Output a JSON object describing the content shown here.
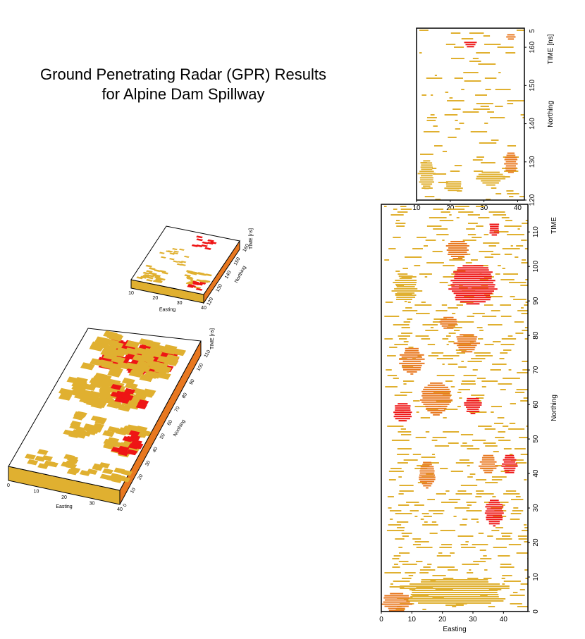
{
  "title": {
    "line1": "Ground Penetrating Radar (GPR) Results",
    "line2": "for Alpine Dam Spillway"
  },
  "colors": {
    "low": "#e0b030",
    "mid": "#e87820",
    "high": "#ee1515",
    "frame": "#000000"
  },
  "chart_data": [
    {
      "type": "heatmap",
      "id": "plan-top",
      "xlabel": "",
      "ylabel": "Northing",
      "right_label": "TIME [ns]",
      "right_label_value": "5",
      "xlim": [
        10,
        42
      ],
      "ylim": [
        120,
        165
      ],
      "x_ticks": [
        "10",
        "20",
        "30",
        "40"
      ],
      "y_ticks": [
        "120",
        "130",
        "140",
        "150",
        "160"
      ],
      "blobs": [
        {
          "x": 26,
          "y": 161,
          "w": 4,
          "h": 2,
          "level": "high"
        },
        {
          "x": 38,
          "y": 163,
          "w": 3,
          "h": 2,
          "level": "mid"
        },
        {
          "x": 32,
          "y": 126,
          "w": 8,
          "h": 4,
          "level": "low"
        },
        {
          "x": 38,
          "y": 130,
          "w": 4,
          "h": 6,
          "level": "mid"
        },
        {
          "x": 13,
          "y": 127,
          "w": 5,
          "h": 8,
          "level": "low"
        },
        {
          "x": 21,
          "y": 124,
          "w": 6,
          "h": 3,
          "level": "low"
        }
      ]
    },
    {
      "type": "heatmap",
      "id": "plan-bottom",
      "xlabel": "Easting",
      "ylabel": "Northing",
      "right_label": "TIME",
      "xlim": [
        0,
        48
      ],
      "ylim": [
        0,
        118
      ],
      "x_ticks": [
        "0",
        "10",
        "20",
        "30",
        "40"
      ],
      "y_ticks": [
        "0",
        "10",
        "20",
        "30",
        "40",
        "50",
        "60",
        "70",
        "80",
        "90",
        "100",
        "110"
      ],
      "blobs": [
        {
          "x": 30,
          "y": 95,
          "w": 16,
          "h": 12,
          "level": "high"
        },
        {
          "x": 25,
          "y": 105,
          "w": 8,
          "h": 6,
          "level": "mid"
        },
        {
          "x": 37,
          "y": 111,
          "w": 4,
          "h": 4,
          "level": "high"
        },
        {
          "x": 8,
          "y": 94,
          "w": 8,
          "h": 8,
          "level": "low"
        },
        {
          "x": 22,
          "y": 84,
          "w": 6,
          "h": 4,
          "level": "mid"
        },
        {
          "x": 28,
          "y": 78,
          "w": 8,
          "h": 6,
          "level": "mid"
        },
        {
          "x": 10,
          "y": 73,
          "w": 8,
          "h": 8,
          "level": "mid"
        },
        {
          "x": 18,
          "y": 62,
          "w": 10,
          "h": 10,
          "level": "mid"
        },
        {
          "x": 7,
          "y": 58,
          "w": 6,
          "h": 6,
          "level": "high"
        },
        {
          "x": 30,
          "y": 60,
          "w": 6,
          "h": 5,
          "level": "high"
        },
        {
          "x": 15,
          "y": 40,
          "w": 6,
          "h": 8,
          "level": "mid"
        },
        {
          "x": 35,
          "y": 43,
          "w": 6,
          "h": 6,
          "level": "mid"
        },
        {
          "x": 42,
          "y": 43,
          "w": 5,
          "h": 6,
          "level": "high"
        },
        {
          "x": 37,
          "y": 29,
          "w": 6,
          "h": 8,
          "level": "high"
        },
        {
          "x": 24,
          "y": 6,
          "w": 40,
          "h": 8,
          "level": "low"
        },
        {
          "x": 5,
          "y": 3,
          "w": 10,
          "h": 6,
          "level": "mid"
        }
      ]
    },
    {
      "type": "heatmap",
      "id": "block-small",
      "xlabel": "Easting",
      "ylabel": "Northing",
      "right_label": "TIME [ns]",
      "x_ticks": [
        "10",
        "20",
        "30",
        "40"
      ],
      "y_ticks": [
        "120",
        "130",
        "140",
        "150",
        "160"
      ]
    },
    {
      "type": "heatmap",
      "id": "block-large",
      "xlabel": "Easting",
      "ylabel": "Northing",
      "right_label": "TIME [ns]",
      "x_ticks": [
        "0",
        "10",
        "20",
        "30",
        "40"
      ],
      "y_ticks": [
        "0",
        "10",
        "20",
        "30",
        "40",
        "50",
        "60",
        "70",
        "80",
        "90",
        "100",
        "110"
      ]
    }
  ]
}
